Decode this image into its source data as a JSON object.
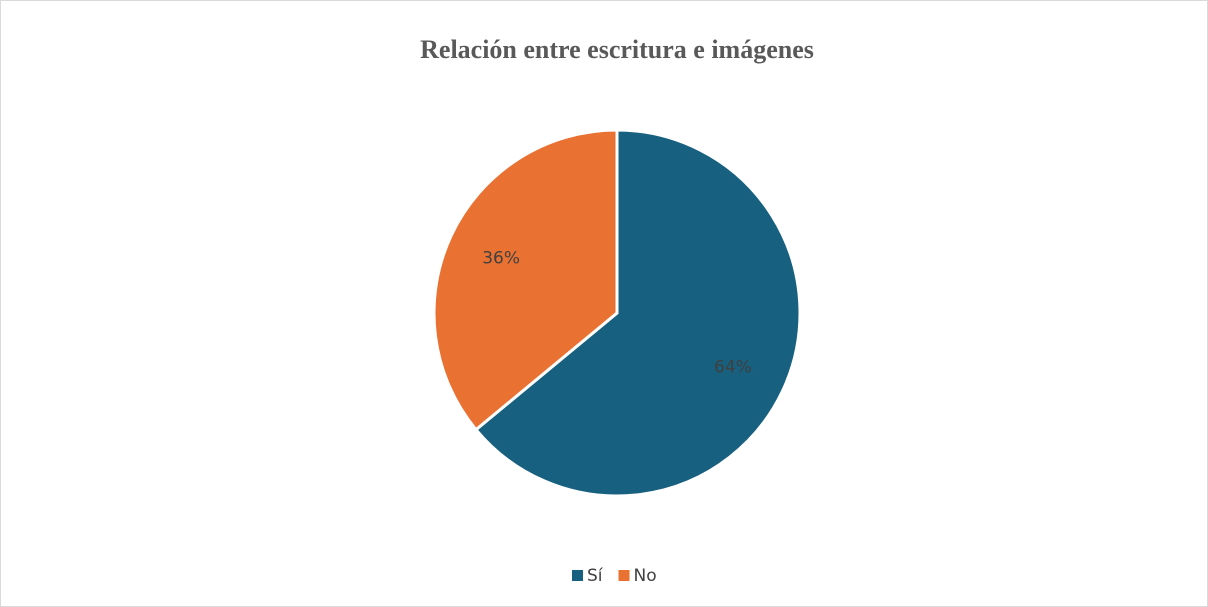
{
  "chart_data": {
    "type": "pie",
    "title": "Relación entre escritura e imágenes",
    "categories": [
      "Sí",
      "No"
    ],
    "values": [
      64,
      36
    ],
    "value_labels": [
      "64%",
      "36%"
    ],
    "colors": [
      "#17607f",
      "#e97132"
    ],
    "legend": "bottom"
  }
}
